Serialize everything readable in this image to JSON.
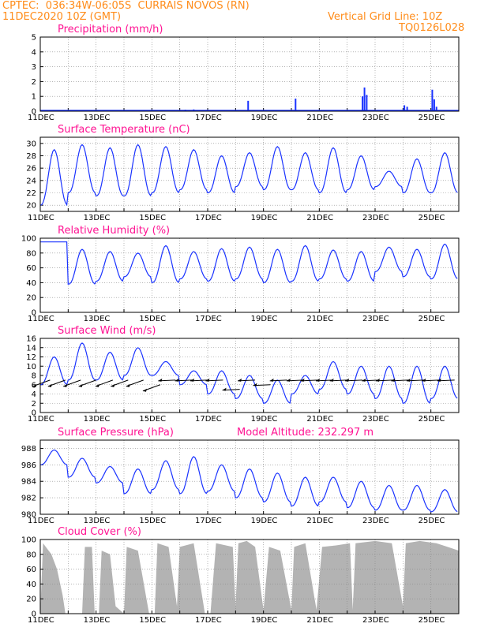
{
  "header": {
    "line1_left": "CPTEC:  036:34W-06:05S  CURRAIS NOVOS (RN)",
    "line2_left": "11DEC2020 10Z (GMT)",
    "line1_right": "Vertical Grid Line: 10Z",
    "line2_right": "TQ0126L028",
    "model_altitude": "Model Altitude: 232.297 m"
  },
  "colors": {
    "header": "#ff8c1a",
    "title": "#ff1493",
    "line": "#1a33ff",
    "cloud": "#b3b3b3",
    "grid": "#888888"
  },
  "chart_data": [
    {
      "type": "bar",
      "title": "Precipitation (mm/h)",
      "ylim": [
        0,
        5
      ],
      "yticks": [
        0,
        1,
        2,
        3,
        4,
        5
      ],
      "x_start_day": 11,
      "x_end_day": 26,
      "xticks": [
        "11DEC",
        "13DEC",
        "15DEC",
        "17DEC",
        "19DEC",
        "21DEC",
        "23DEC",
        "25DEC"
      ],
      "points": [
        [
          12.3,
          0.08
        ],
        [
          16.2,
          0.1
        ],
        [
          16.5,
          0.12
        ],
        [
          18.45,
          0.7
        ],
        [
          20.15,
          0.85
        ],
        [
          22.55,
          1.0
        ],
        [
          22.62,
          1.6
        ],
        [
          22.7,
          1.1
        ],
        [
          24.05,
          0.4
        ],
        [
          24.15,
          0.3
        ],
        [
          25.05,
          1.45
        ],
        [
          25.12,
          0.8
        ],
        [
          25.2,
          0.3
        ]
      ]
    },
    {
      "type": "line",
      "title": "Surface Temperature (nC)",
      "ylim": [
        19,
        31
      ],
      "yticks": [
        20,
        22,
        24,
        26,
        28,
        30
      ],
      "x_start_day": 11,
      "x_end_day": 26,
      "xticks": [
        "11DEC",
        "13DEC",
        "15DEC",
        "17DEC",
        "19DEC",
        "21DEC",
        "23DEC",
        "25DEC"
      ],
      "diurnal": {
        "min": [
          20.0,
          22.0,
          21.5,
          21.5,
          22.0,
          22.5,
          22.0,
          23.0,
          22.5,
          22.5,
          22.0,
          22.5,
          23.0,
          22.0,
          22.0,
          22.5
        ],
        "max": [
          29.0,
          29.8,
          29.3,
          29.8,
          29.5,
          29.0,
          28.0,
          28.5,
          29.5,
          28.5,
          29.3,
          28.0,
          25.5,
          27.5,
          28.5,
          29.3
        ]
      }
    },
    {
      "type": "line",
      "title": "Relative Humidity (%)",
      "ylim": [
        0,
        100
      ],
      "yticks": [
        0,
        20,
        40,
        60,
        80,
        100
      ],
      "x_start_day": 11,
      "x_end_day": 26,
      "xticks": [
        "11DEC",
        "13DEC",
        "15DEC",
        "17DEC",
        "19DEC",
        "21DEC",
        "23DEC",
        "25DEC"
      ],
      "diurnal": {
        "min": [
          95,
          38,
          42,
          48,
          40,
          45,
          42,
          45,
          40,
          42,
          45,
          42,
          55,
          48,
          45,
          42
        ],
        "max": [
          95,
          85,
          82,
          80,
          90,
          82,
          86,
          88,
          85,
          90,
          84,
          82,
          88,
          85,
          92,
          95
        ]
      }
    },
    {
      "type": "line",
      "title": "Surface Wind (m/s)",
      "ylim": [
        0,
        16
      ],
      "yticks": [
        0,
        2,
        4,
        6,
        8,
        10,
        12,
        14,
        16
      ],
      "x_start_day": 11,
      "x_end_day": 26,
      "xticks": [
        "11DEC",
        "13DEC",
        "15DEC",
        "17DEC",
        "19DEC",
        "21DEC",
        "23DEC",
        "25DEC"
      ],
      "diurnal": {
        "min": [
          6,
          7,
          7,
          8,
          8,
          6,
          4,
          3,
          2,
          4,
          5,
          4,
          3,
          2,
          3,
          4
        ],
        "max": [
          12,
          15,
          13,
          14,
          11,
          9,
          9,
          8,
          7,
          8,
          11,
          10,
          10,
          10,
          10,
          10
        ]
      },
      "vectors": [
        [
          11.35,
          7
        ],
        [
          11.9,
          7
        ],
        [
          12.45,
          7
        ],
        [
          13.0,
          7
        ],
        [
          13.6,
          7
        ],
        [
          14.15,
          7
        ],
        [
          14.7,
          7
        ],
        [
          15.3,
          6
        ],
        [
          15.85,
          7
        ],
        [
          16.45,
          7
        ],
        [
          17.0,
          7
        ],
        [
          17.55,
          7
        ],
        [
          18.15,
          5
        ],
        [
          18.7,
          7
        ],
        [
          19.25,
          6
        ],
        [
          19.85,
          7
        ],
        [
          20.45,
          7
        ],
        [
          20.95,
          7
        ],
        [
          21.5,
          7
        ],
        [
          22.0,
          7
        ],
        [
          22.55,
          7
        ],
        [
          23.15,
          7
        ],
        [
          23.65,
          7
        ],
        [
          24.2,
          7
        ],
        [
          24.75,
          7
        ],
        [
          25.3,
          7
        ],
        [
          25.85,
          7
        ]
      ]
    },
    {
      "type": "line",
      "title": "Surface Pressure (hPa)",
      "ylim": [
        980,
        989
      ],
      "yticks": [
        980,
        982,
        984,
        986,
        988
      ],
      "x_start_day": 11,
      "x_end_day": 26,
      "xticks": [
        "11DEC",
        "13DEC",
        "15DEC",
        "17DEC",
        "19DEC",
        "21DEC",
        "23DEC",
        "25DEC"
      ],
      "diurnal": {
        "min": [
          986.0,
          984.5,
          983.8,
          982.5,
          983.0,
          982.5,
          982.8,
          982.0,
          981.5,
          981.0,
          981.5,
          980.8,
          980.5,
          980.5,
          980.3,
          980.0
        ],
        "max": [
          987.8,
          986.8,
          985.8,
          985.5,
          986.5,
          987.0,
          986.0,
          985.5,
          985.0,
          984.5,
          984.5,
          984.0,
          983.5,
          983.5,
          983.0,
          983.8
        ]
      }
    },
    {
      "type": "area",
      "title": "Cloud Cover (%)",
      "ylim": [
        0,
        100
      ],
      "yticks": [
        0,
        20,
        40,
        60,
        80,
        100
      ],
      "x_start_day": 11,
      "x_end_day": 26,
      "xticks": [
        "11DEC",
        "13DEC",
        "15DEC",
        "17DEC",
        "19DEC",
        "21DEC",
        "23DEC",
        "25DEC"
      ],
      "profile": [
        [
          11.0,
          0
        ],
        [
          11.1,
          95
        ],
        [
          11.4,
          80
        ],
        [
          11.6,
          60
        ],
        [
          11.8,
          25
        ],
        [
          11.9,
          0
        ],
        [
          12.5,
          0
        ],
        [
          12.6,
          90
        ],
        [
          12.85,
          90
        ],
        [
          12.95,
          0
        ],
        [
          13.1,
          0
        ],
        [
          13.2,
          85
        ],
        [
          13.5,
          80
        ],
        [
          13.7,
          10
        ],
        [
          14.0,
          0
        ],
        [
          14.1,
          90
        ],
        [
          14.5,
          85
        ],
        [
          14.9,
          0
        ],
        [
          15.1,
          0
        ],
        [
          15.2,
          95
        ],
        [
          15.6,
          90
        ],
        [
          15.9,
          10
        ],
        [
          16.0,
          90
        ],
        [
          16.5,
          95
        ],
        [
          16.9,
          0
        ],
        [
          17.1,
          0
        ],
        [
          17.3,
          95
        ],
        [
          17.9,
          90
        ],
        [
          18.0,
          10
        ],
        [
          18.1,
          95
        ],
        [
          18.4,
          98
        ],
        [
          18.7,
          90
        ],
        [
          19.0,
          5
        ],
        [
          19.2,
          90
        ],
        [
          19.6,
          85
        ],
        [
          20.0,
          5
        ],
        [
          20.1,
          90
        ],
        [
          20.5,
          95
        ],
        [
          20.9,
          5
        ],
        [
          21.1,
          90
        ],
        [
          21.6,
          92
        ],
        [
          22.1,
          95
        ],
        [
          22.2,
          5
        ],
        [
          22.3,
          95
        ],
        [
          23.0,
          98
        ],
        [
          23.6,
          95
        ],
        [
          24.0,
          10
        ],
        [
          24.1,
          95
        ],
        [
          24.6,
          98
        ],
        [
          25.2,
          95
        ],
        [
          25.6,
          90
        ],
        [
          26.0,
          85
        ]
      ]
    }
  ]
}
